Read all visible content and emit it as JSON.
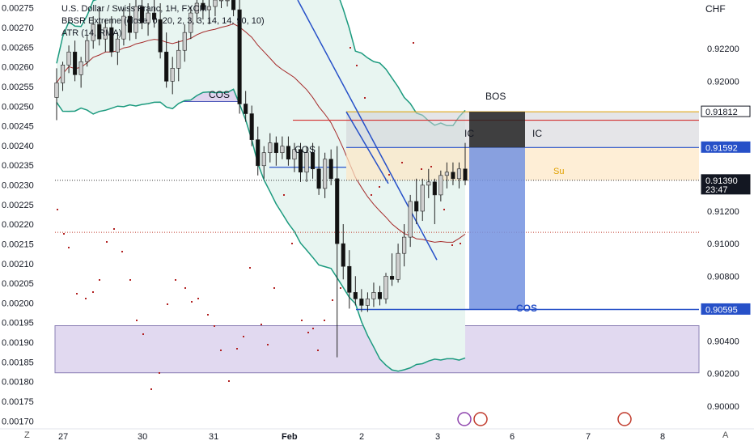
{
  "header": {
    "symbol_line": "U.S. Dollar / Swiss Franc, 1H, FXCM",
    "indicator_1": "BBSR Extreme (close, 0, 20, 2, 3, 3, 14, 14, 90, 10)",
    "indicator_2": "ATR (14, RMA)",
    "currency": "CHF"
  },
  "footer": {
    "timezone_button": "Z",
    "auto_button": "A"
  },
  "colors": {
    "bull_candle": "#cfcfcf",
    "bear_candle": "#111111",
    "wick": "#222222",
    "bollinger": "#1b9a7e",
    "bb_fill": "#e8f5f1",
    "basis": "#a52a2a",
    "trendline": "#2650c8",
    "cos_line": "#2650c8",
    "bos_line": "#d32f2f",
    "purple_zone": "#c9b9e4",
    "supply_zone": "#fde7c4",
    "bos_box": "#222222",
    "position_box": "#7392e0",
    "dots": "#b22222"
  },
  "chart_data": {
    "type": "candlestick",
    "symbol": "U.S. Dollar / Swiss Franc",
    "timeframe": "1H",
    "right_axis": {
      "currency": "CHF",
      "range": [
        0.8986,
        0.925
      ],
      "ticks": [
        "0.92200",
        "0.92000",
        "0.91200",
        "0.91000",
        "0.90800",
        "0.90400",
        "0.90200",
        "0.90000"
      ]
    },
    "left_axis": {
      "indicator": "ATR (14, RMA)",
      "range": [
        0.00168,
        0.00277
      ],
      "ticks": [
        "0.00275",
        "0.00270",
        "0.00265",
        "0.00260",
        "0.00255",
        "0.00250",
        "0.00245",
        "0.00240",
        "0.00235",
        "0.00230",
        "0.00225",
        "0.00220",
        "0.00215",
        "0.00210",
        "0.00205",
        "0.00200",
        "0.00195",
        "0.00190",
        "0.00185",
        "0.00180",
        "0.00175",
        "0.00170"
      ]
    },
    "x_ticks": [
      "27",
      "30",
      "31",
      "Feb",
      "2",
      "3",
      "6",
      "7",
      "8"
    ],
    "price_labels": [
      {
        "value": "0.91812",
        "style": "plain"
      },
      {
        "value": "0.91592",
        "style": "blue"
      },
      {
        "value": "0.91390",
        "style": "dark",
        "countdown": "23:47"
      },
      {
        "value": "0.90595",
        "style": "blue"
      }
    ],
    "annotations": [
      "COS",
      "COS",
      "BOS",
      "IC",
      "IC",
      "Su",
      "COS"
    ],
    "candles": [
      [
        0.919,
        0.9208,
        0.9176,
        0.9199
      ],
      [
        0.9199,
        0.9212,
        0.9194,
        0.921
      ],
      [
        0.921,
        0.9222,
        0.9205,
        0.9218
      ],
      [
        0.9218,
        0.9225,
        0.92,
        0.9204
      ],
      [
        0.9204,
        0.9215,
        0.9196,
        0.9212
      ],
      [
        0.9212,
        0.9228,
        0.9209,
        0.9225
      ],
      [
        0.9225,
        0.924,
        0.922,
        0.9235
      ],
      [
        0.9235,
        0.9246,
        0.9222,
        0.9226
      ],
      [
        0.9226,
        0.9238,
        0.9218,
        0.9233
      ],
      [
        0.9233,
        0.924,
        0.9215,
        0.9218
      ],
      [
        0.9218,
        0.923,
        0.921,
        0.9226
      ],
      [
        0.9226,
        0.9245,
        0.9222,
        0.924
      ],
      [
        0.924,
        0.9248,
        0.9225,
        0.923
      ],
      [
        0.923,
        0.925,
        0.9226,
        0.9246
      ],
      [
        0.9246,
        0.925,
        0.9232,
        0.9236
      ],
      [
        0.9236,
        0.9248,
        0.9228,
        0.9242
      ],
      [
        0.9242,
        0.925,
        0.9233,
        0.9238
      ],
      [
        0.9238,
        0.9248,
        0.9214,
        0.9218
      ],
      [
        0.9218,
        0.923,
        0.9196,
        0.92
      ],
      [
        0.92,
        0.9215,
        0.9192,
        0.9208
      ],
      [
        0.9208,
        0.9225,
        0.92,
        0.9219
      ],
      [
        0.9219,
        0.9235,
        0.9212,
        0.923
      ],
      [
        0.923,
        0.9246,
        0.9226,
        0.9242
      ],
      [
        0.9242,
        0.925,
        0.9236,
        0.9248
      ],
      [
        0.9248,
        0.925,
        0.9238,
        0.9244
      ],
      [
        0.9244,
        0.925,
        0.9235,
        0.9246
      ],
      [
        0.9246,
        0.925,
        0.924,
        0.925
      ],
      [
        0.925,
        0.925,
        0.9245,
        0.925
      ],
      [
        0.925,
        0.925,
        0.9246,
        0.925
      ],
      [
        0.925,
        0.925,
        0.924,
        0.9244
      ],
      [
        0.9244,
        0.925,
        0.918,
        0.9186
      ],
      [
        0.9186,
        0.9194,
        0.9175,
        0.918
      ],
      [
        0.918,
        0.9185,
        0.916,
        0.9164
      ],
      [
        0.9164,
        0.9172,
        0.9142,
        0.9148
      ],
      [
        0.9148,
        0.916,
        0.914,
        0.9156
      ],
      [
        0.9156,
        0.9168,
        0.915,
        0.9162
      ],
      [
        0.9162,
        0.9166,
        0.9148,
        0.9156
      ],
      [
        0.9156,
        0.9166,
        0.9152,
        0.916
      ],
      [
        0.916,
        0.9166,
        0.9148,
        0.9152
      ],
      [
        0.9152,
        0.9162,
        0.9144,
        0.9158
      ],
      [
        0.9158,
        0.9162,
        0.9138,
        0.9144
      ],
      [
        0.9144,
        0.916,
        0.9138,
        0.9156
      ],
      [
        0.9156,
        0.9162,
        0.914,
        0.9146
      ],
      [
        0.9146,
        0.916,
        0.913,
        0.9134
      ],
      [
        0.9134,
        0.9156,
        0.9128,
        0.9152
      ],
      [
        0.9152,
        0.9158,
        0.9136,
        0.914
      ],
      [
        0.914,
        0.916,
        0.903,
        0.91
      ],
      [
        0.91,
        0.9112,
        0.9078,
        0.9086
      ],
      [
        0.9086,
        0.9096,
        0.906,
        0.907
      ],
      [
        0.907,
        0.908,
        0.9062,
        0.9066
      ],
      [
        0.9066,
        0.9072,
        0.9058,
        0.9062
      ],
      [
        0.9062,
        0.907,
        0.9058,
        0.9066
      ],
      [
        0.9066,
        0.9076,
        0.9061,
        0.907
      ],
      [
        0.907,
        0.9074,
        0.9062,
        0.9066
      ],
      [
        0.9066,
        0.9082,
        0.9063,
        0.908
      ],
      [
        0.908,
        0.9094,
        0.9074,
        0.9078
      ],
      [
        0.9078,
        0.91,
        0.9076,
        0.9094
      ],
      [
        0.9094,
        0.9112,
        0.9086,
        0.9104
      ],
      [
        0.9104,
        0.913,
        0.9098,
        0.9126
      ],
      [
        0.9126,
        0.914,
        0.9112,
        0.912
      ],
      [
        0.912,
        0.914,
        0.9114,
        0.9136
      ],
      [
        0.9136,
        0.9146,
        0.9128,
        0.9138
      ],
      [
        0.9138,
        0.914,
        0.9112,
        0.913
      ],
      [
        0.913,
        0.9145,
        0.9126,
        0.9142
      ],
      [
        0.9142,
        0.915,
        0.9134,
        0.9144
      ],
      [
        0.9144,
        0.915,
        0.9136,
        0.914
      ],
      [
        0.914,
        0.915,
        0.9134,
        0.9146
      ],
      [
        0.9146,
        0.9162,
        0.9136,
        0.9139
      ]
    ]
  }
}
